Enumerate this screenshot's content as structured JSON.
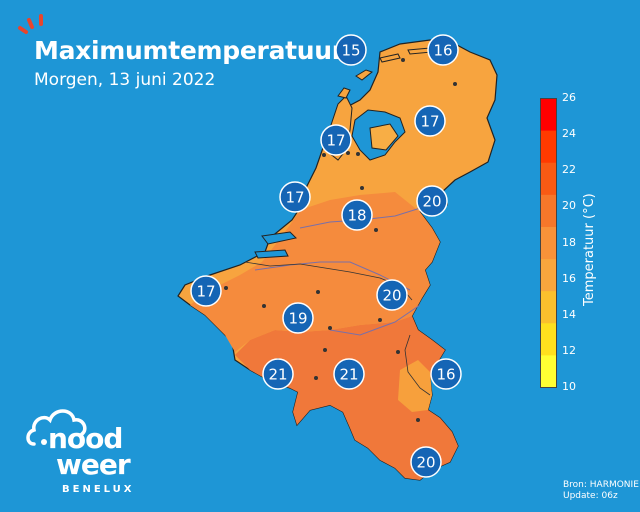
{
  "header": {
    "title": "Maximumtemperatuur",
    "subtitle": "Morgen, 13 juni 2022"
  },
  "colorbar": {
    "title": "Temperatuur (°C)",
    "ticks": [
      "26",
      "24",
      "22",
      "20",
      "18",
      "16",
      "14",
      "12",
      "10"
    ],
    "colors": [
      "#ff0000",
      "#ff3a00",
      "#f85a14",
      "#f6772a",
      "#f89239",
      "#f8a63d",
      "#fbc02d",
      "#ffe01e",
      "#ffff33"
    ]
  },
  "readings": [
    {
      "id": "north-sea-west",
      "value": "15"
    },
    {
      "id": "groningen",
      "value": "16"
    },
    {
      "id": "ijsselmeer-east",
      "value": "17"
    },
    {
      "id": "noord-holland",
      "value": "17"
    },
    {
      "id": "zuid-holland",
      "value": "17"
    },
    {
      "id": "utrecht",
      "value": "18"
    },
    {
      "id": "gelderland",
      "value": "20"
    },
    {
      "id": "belgian-coast",
      "value": "17"
    },
    {
      "id": "limburg",
      "value": "20"
    },
    {
      "id": "brussels",
      "value": "19"
    },
    {
      "id": "hainaut",
      "value": "21"
    },
    {
      "id": "namur",
      "value": "21"
    },
    {
      "id": "eifel",
      "value": "16"
    },
    {
      "id": "luxembourg",
      "value": "20"
    }
  ],
  "credits": {
    "source": "Bron: HARMONIE",
    "update": "Update: 06z"
  },
  "logo": {
    "line1": "nood",
    "line2": "weer",
    "line3": "BENELUX"
  },
  "map_colors": {
    "sea": "#1e96d6",
    "land_cool": "#f7a43f",
    "land_mid": "#f58b3d",
    "land_warm": "#f0783a"
  }
}
